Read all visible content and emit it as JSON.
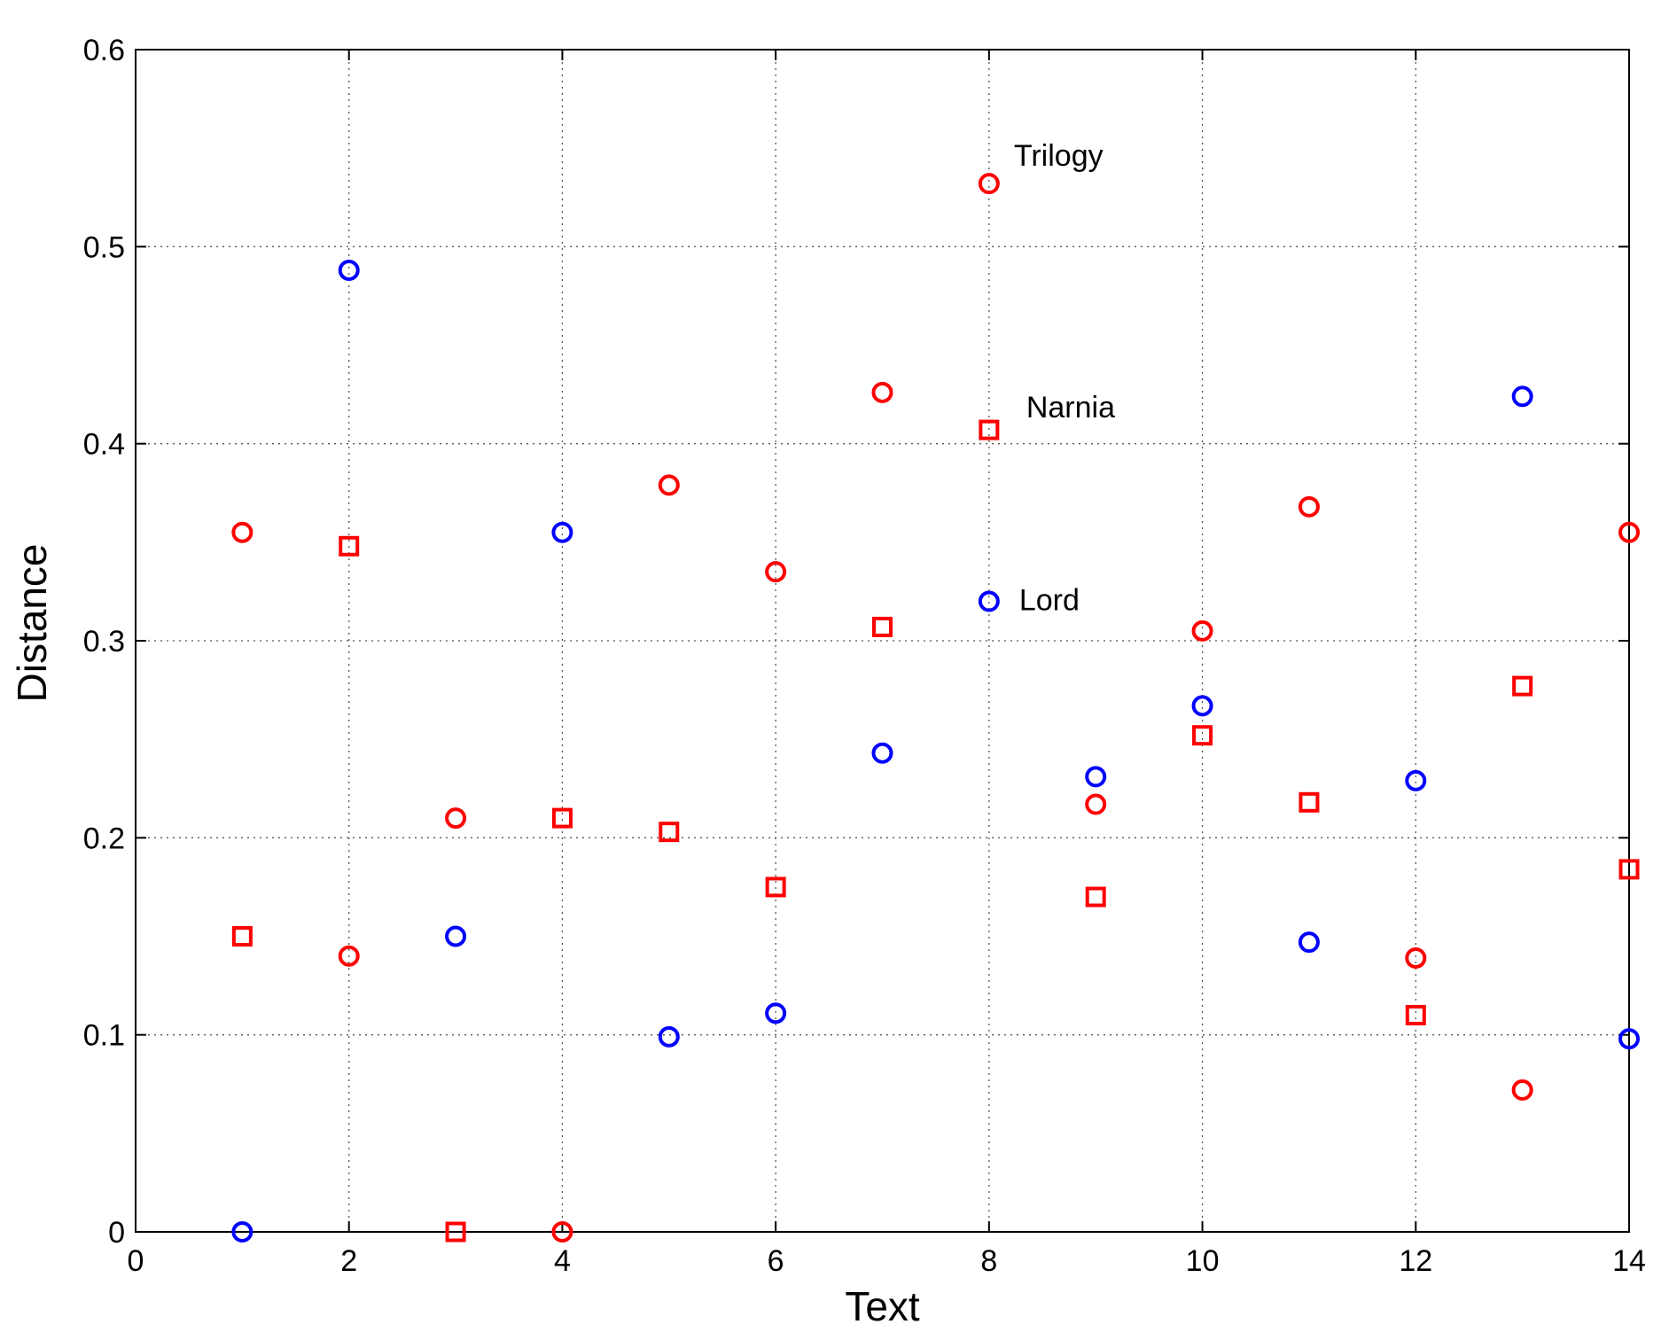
{
  "chart_data": {
    "type": "scatter",
    "title": "",
    "xlabel": "Text",
    "ylabel": "Distance",
    "xlim": [
      0,
      14
    ],
    "ylim": [
      0,
      0.6
    ],
    "xticks": [
      0,
      2,
      4,
      6,
      8,
      10,
      12,
      14
    ],
    "yticks": [
      0,
      0.1,
      0.2,
      0.3,
      0.4,
      0.5,
      0.6
    ],
    "xtick_labels": [
      "0",
      "2",
      "4",
      "6",
      "8",
      "10",
      "12",
      "14"
    ],
    "ytick_labels": [
      "0",
      "0.1",
      "0.2",
      "0.3",
      "0.4",
      "0.5",
      "0.6"
    ],
    "grid": true,
    "legend": "none",
    "series": [
      {
        "marker": "circle",
        "color": "#ff0000",
        "x": [
          1,
          2,
          3,
          4,
          5,
          6,
          7,
          8,
          9,
          10,
          11,
          12,
          13,
          14
        ],
        "y": [
          0.355,
          0.14,
          0.21,
          0.0,
          0.379,
          0.335,
          0.426,
          0.532,
          0.217,
          0.305,
          0.368,
          0.139,
          0.072,
          0.355
        ]
      },
      {
        "marker": "square",
        "color": "#ff0000",
        "x": [
          1,
          2,
          3,
          4,
          5,
          6,
          7,
          8,
          9,
          10,
          11,
          12,
          13,
          14
        ],
        "y": [
          0.15,
          0.348,
          0.0,
          0.21,
          0.203,
          0.175,
          0.307,
          0.407,
          0.17,
          0.252,
          0.218,
          0.11,
          0.277,
          0.184
        ]
      },
      {
        "marker": "circle",
        "color": "#0000ff",
        "x": [
          1,
          2,
          3,
          4,
          5,
          6,
          7,
          8,
          9,
          10,
          11,
          12,
          13,
          14
        ],
        "y": [
          0.0,
          0.488,
          0.15,
          0.355,
          0.099,
          0.111,
          0.243,
          0.32,
          0.231,
          0.267,
          0.147,
          0.229,
          0.424,
          0.098
        ]
      }
    ],
    "annotations": [
      {
        "text": "Trilogy",
        "x": 8,
        "y": 0.532
      },
      {
        "text": "Narnia",
        "x": 8,
        "y": 0.407
      },
      {
        "text": "Lord",
        "x": 8,
        "y": 0.32
      }
    ]
  }
}
